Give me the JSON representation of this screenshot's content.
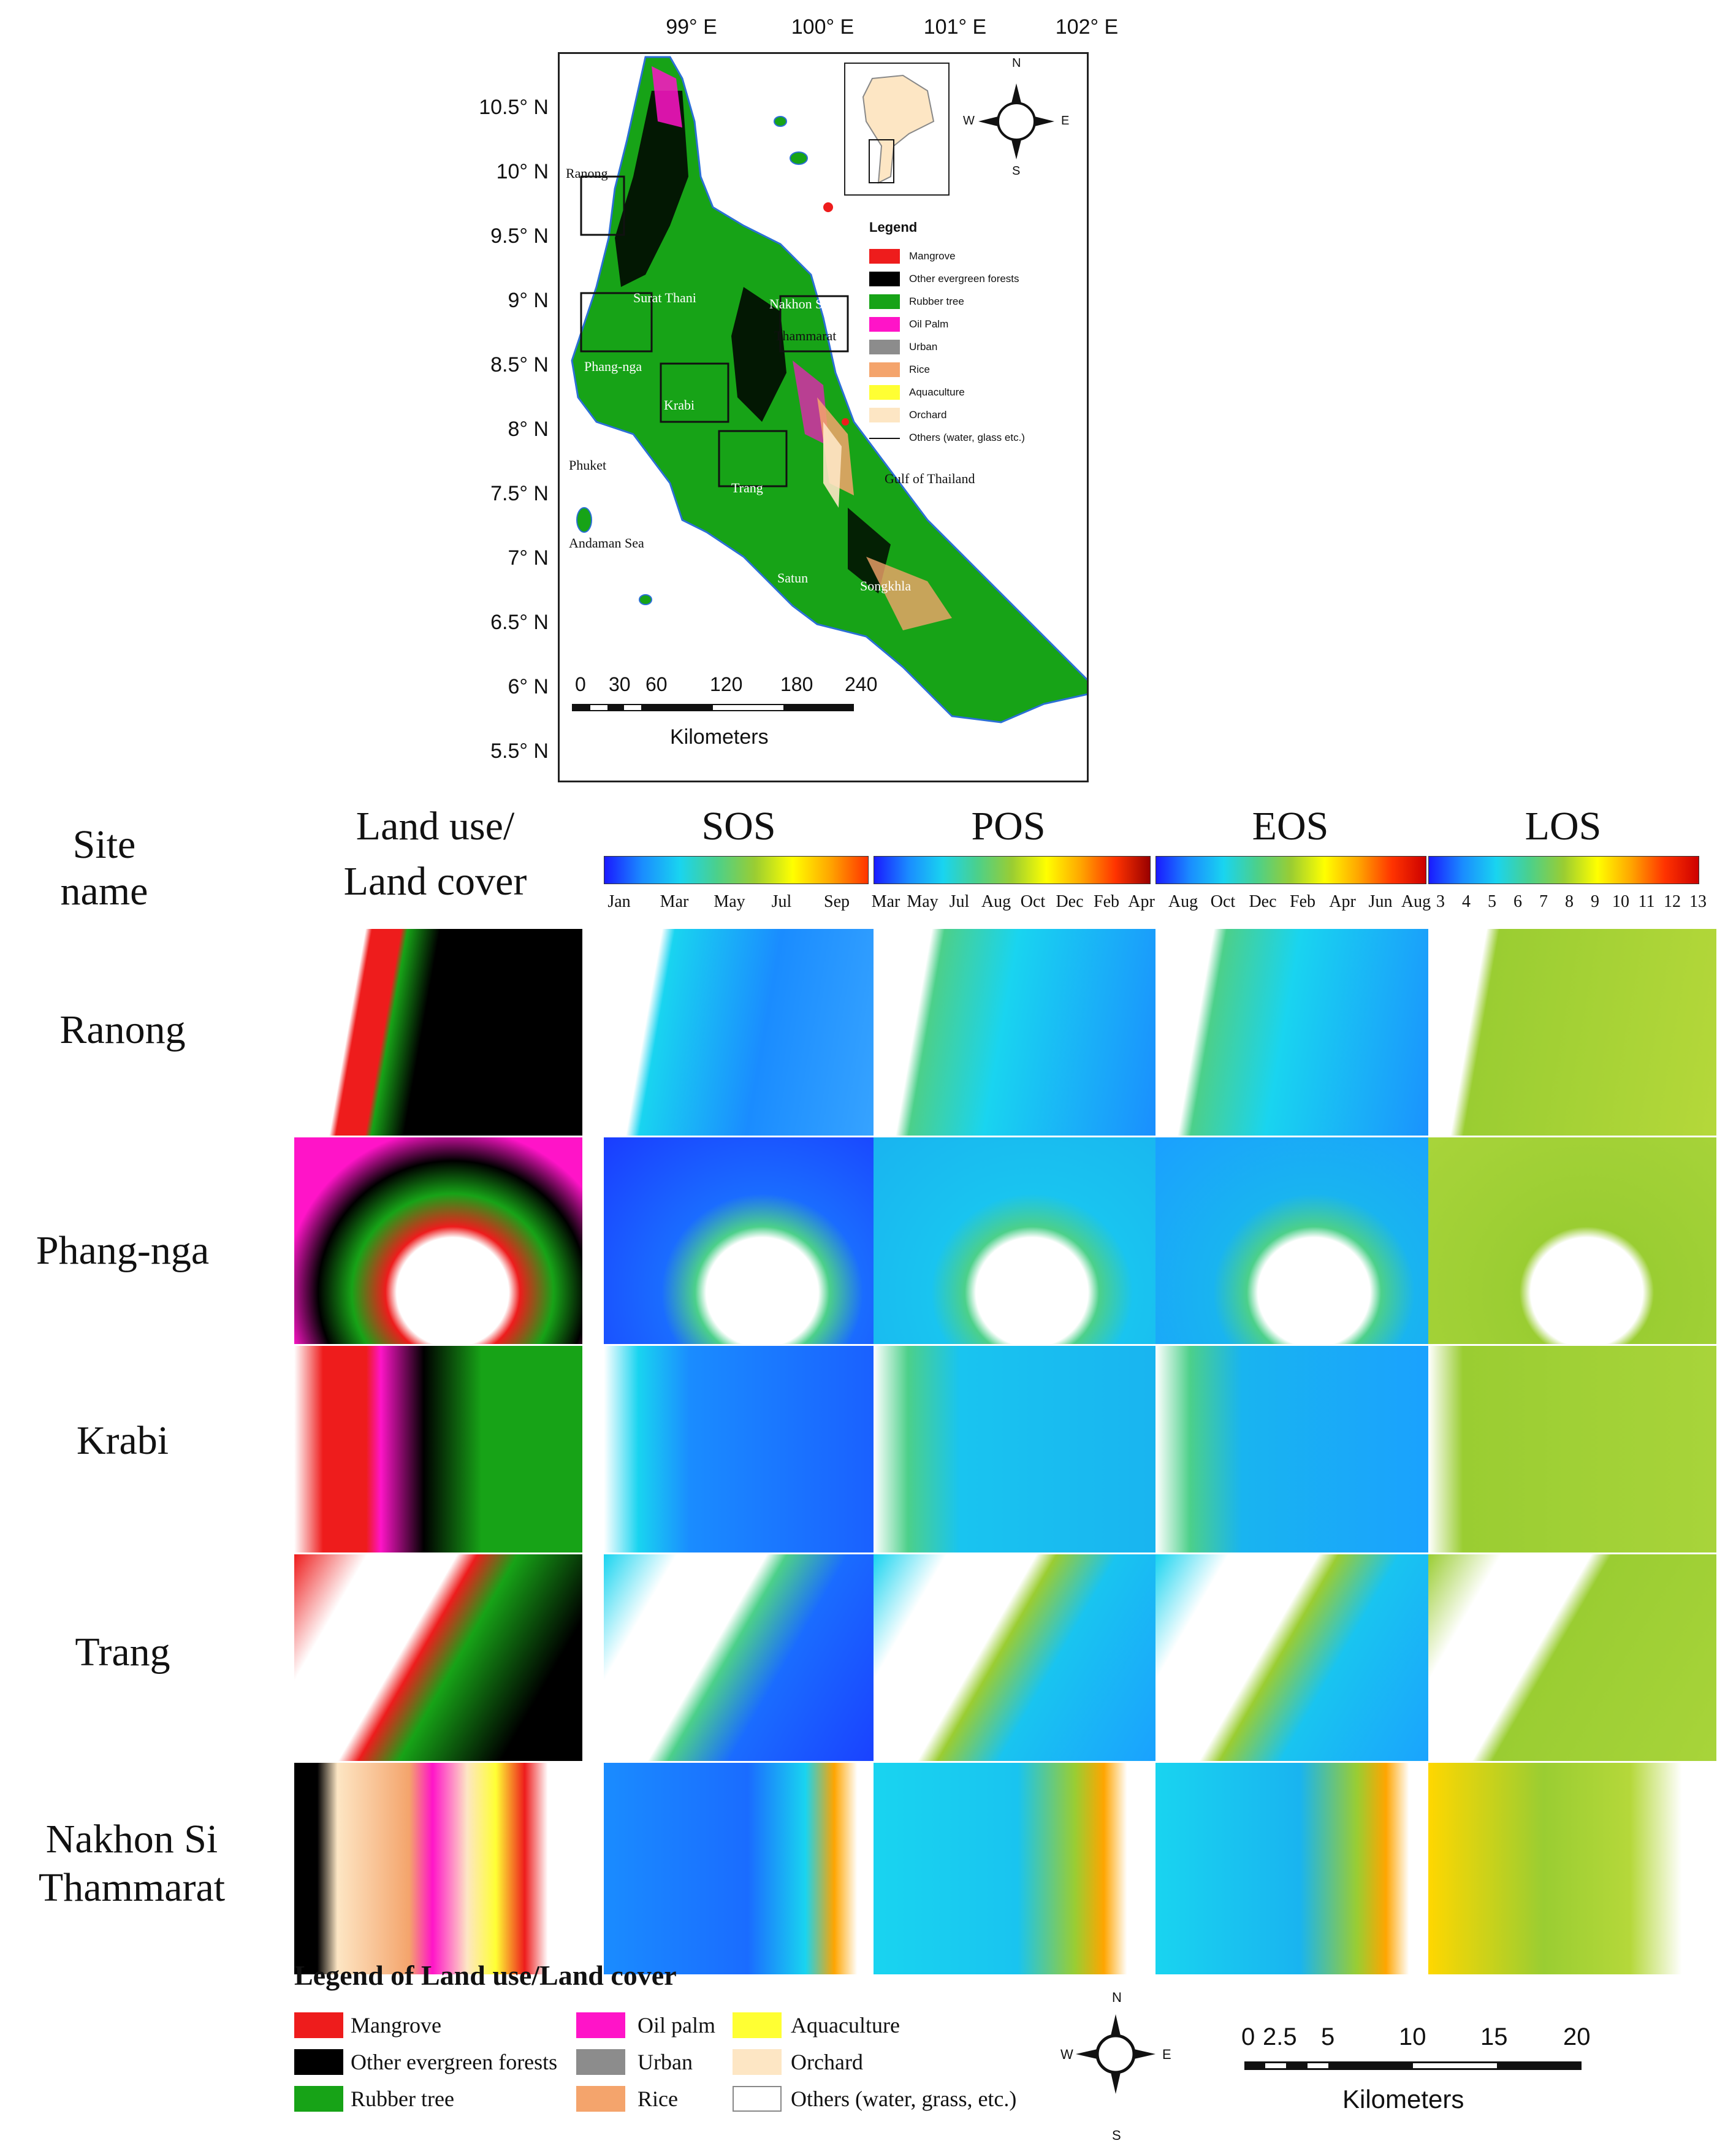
{
  "overview": {
    "lat_labels": [
      "10.5° N",
      "10° N",
      "9.5° N",
      "9° N",
      "8.5° N",
      "8° N",
      "7.5° N",
      "7° N",
      "6.5° N",
      "6° N",
      "5.5° N"
    ],
    "lon_labels": [
      "99° E",
      "100° E",
      "101° E",
      "102° E"
    ],
    "places": [
      "Ranong",
      "Surat Thani",
      "Nakhon Si",
      "Thammarat",
      "Phang-nga",
      "Krabi",
      "Phuket",
      "Trang",
      "Satun",
      "Songkhla",
      "Andaman Sea",
      "Gulf of Thailand"
    ],
    "compass": {
      "n": "N",
      "s": "S",
      "e": "E",
      "w": "W"
    },
    "legend_title": "Legend",
    "legend_items": [
      "Mangrove",
      "Other evergreen forests",
      "Rubber tree",
      "Oil Palm",
      "Urban",
      "Rice",
      "Aquaculture",
      "Orchard",
      "Others (water, glass etc.)"
    ],
    "scale_ticks": [
      "0",
      "30",
      "60",
      "120",
      "180",
      "240"
    ],
    "scale_unit": "Kilometers"
  },
  "grid": {
    "site_header": "Site name",
    "lulc_header_1": "Land use/",
    "lulc_header_2": "Land cover",
    "columns": [
      "SOS",
      "POS",
      "EOS",
      "LOS"
    ],
    "colorbar_labels": {
      "SOS": [
        "Jan",
        "Mar",
        "May",
        "Jul",
        "Sep"
      ],
      "POS": [
        "Mar",
        "May",
        "Jul",
        "Aug",
        "Oct",
        "Dec",
        "Feb",
        "Apr"
      ],
      "EOS": [
        "Aug",
        "Oct",
        "Dec",
        "Feb",
        "Apr",
        "Jun",
        "Aug"
      ],
      "LOS": [
        "3",
        "4",
        "5",
        "6",
        "7",
        "8",
        "9",
        "10",
        "11",
        "12",
        "13"
      ]
    },
    "sites": [
      "Ranong",
      "Phang-nga",
      "Krabi",
      "Trang",
      "Nakhon Si Thammarat"
    ]
  },
  "bottom_legend": {
    "title": "Legend of Land use/Land cover",
    "items": [
      "Mangrove",
      "Oil palm",
      "Aquaculture",
      "Other evergreen forests",
      "Urban",
      "Orchard",
      "Rubber tree",
      "Rice",
      "Others (water, grass, etc.)"
    ],
    "compass": {
      "n": "N",
      "s": "S",
      "e": "E",
      "w": "W"
    },
    "scale_ticks": [
      "0",
      "2.5",
      "5",
      "10",
      "15",
      "20"
    ],
    "scale_unit": "Kilometers"
  },
  "colors": {
    "mangrove": "#ee1c1c",
    "evergreen": "#000000",
    "rubber": "#17a317",
    "oilpalm": "#ff14c8",
    "urban": "#8c8c8c",
    "rice": "#f4a46c",
    "aquaculture": "#ffff33",
    "orchard": "#fde6c4",
    "others": "#ffffff"
  }
}
